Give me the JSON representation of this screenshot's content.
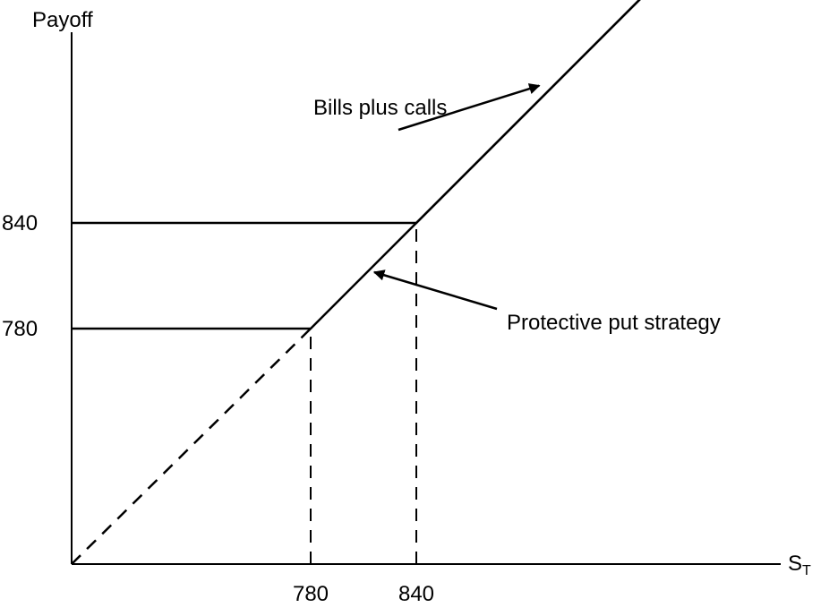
{
  "chart_data": {
    "type": "line",
    "ylabel": "Payoff",
    "xlabel": "S",
    "xlabel_sub": "T",
    "x_ticks": [
      {
        "value": 780,
        "label": "780"
      },
      {
        "value": 840,
        "label": "840"
      }
    ],
    "y_ticks": [
      {
        "value": 780,
        "label": "780"
      },
      {
        "value": 840,
        "label": "840"
      }
    ],
    "series": [
      {
        "name": "Protective put strategy",
        "style": "solid",
        "points": [
          [
            0,
            780
          ],
          [
            780,
            780
          ],
          [
            840,
            840
          ],
          [
            1000,
            1000
          ]
        ]
      },
      {
        "name": "Bills plus calls",
        "style": "solid",
        "points": [
          [
            0,
            840
          ],
          [
            840,
            840
          ],
          [
            1000,
            1000
          ]
        ]
      },
      {
        "name": "",
        "style": "dashed",
        "points": [
          [
            0,
            0
          ],
          [
            780,
            780
          ]
        ]
      }
    ],
    "reference_lines": [
      {
        "style": "dashed",
        "x": 780,
        "from_y": 0,
        "to_y": 780
      },
      {
        "style": "dashed",
        "x": 840,
        "from_y": 0,
        "to_y": 840
      }
    ],
    "annotations": [
      {
        "text": "Bills plus calls",
        "points_to": [
          920,
          920
        ]
      },
      {
        "text": "Protective put strategy",
        "points_to": [
          810,
          810
        ]
      }
    ],
    "grid": false,
    "legend": "none"
  }
}
